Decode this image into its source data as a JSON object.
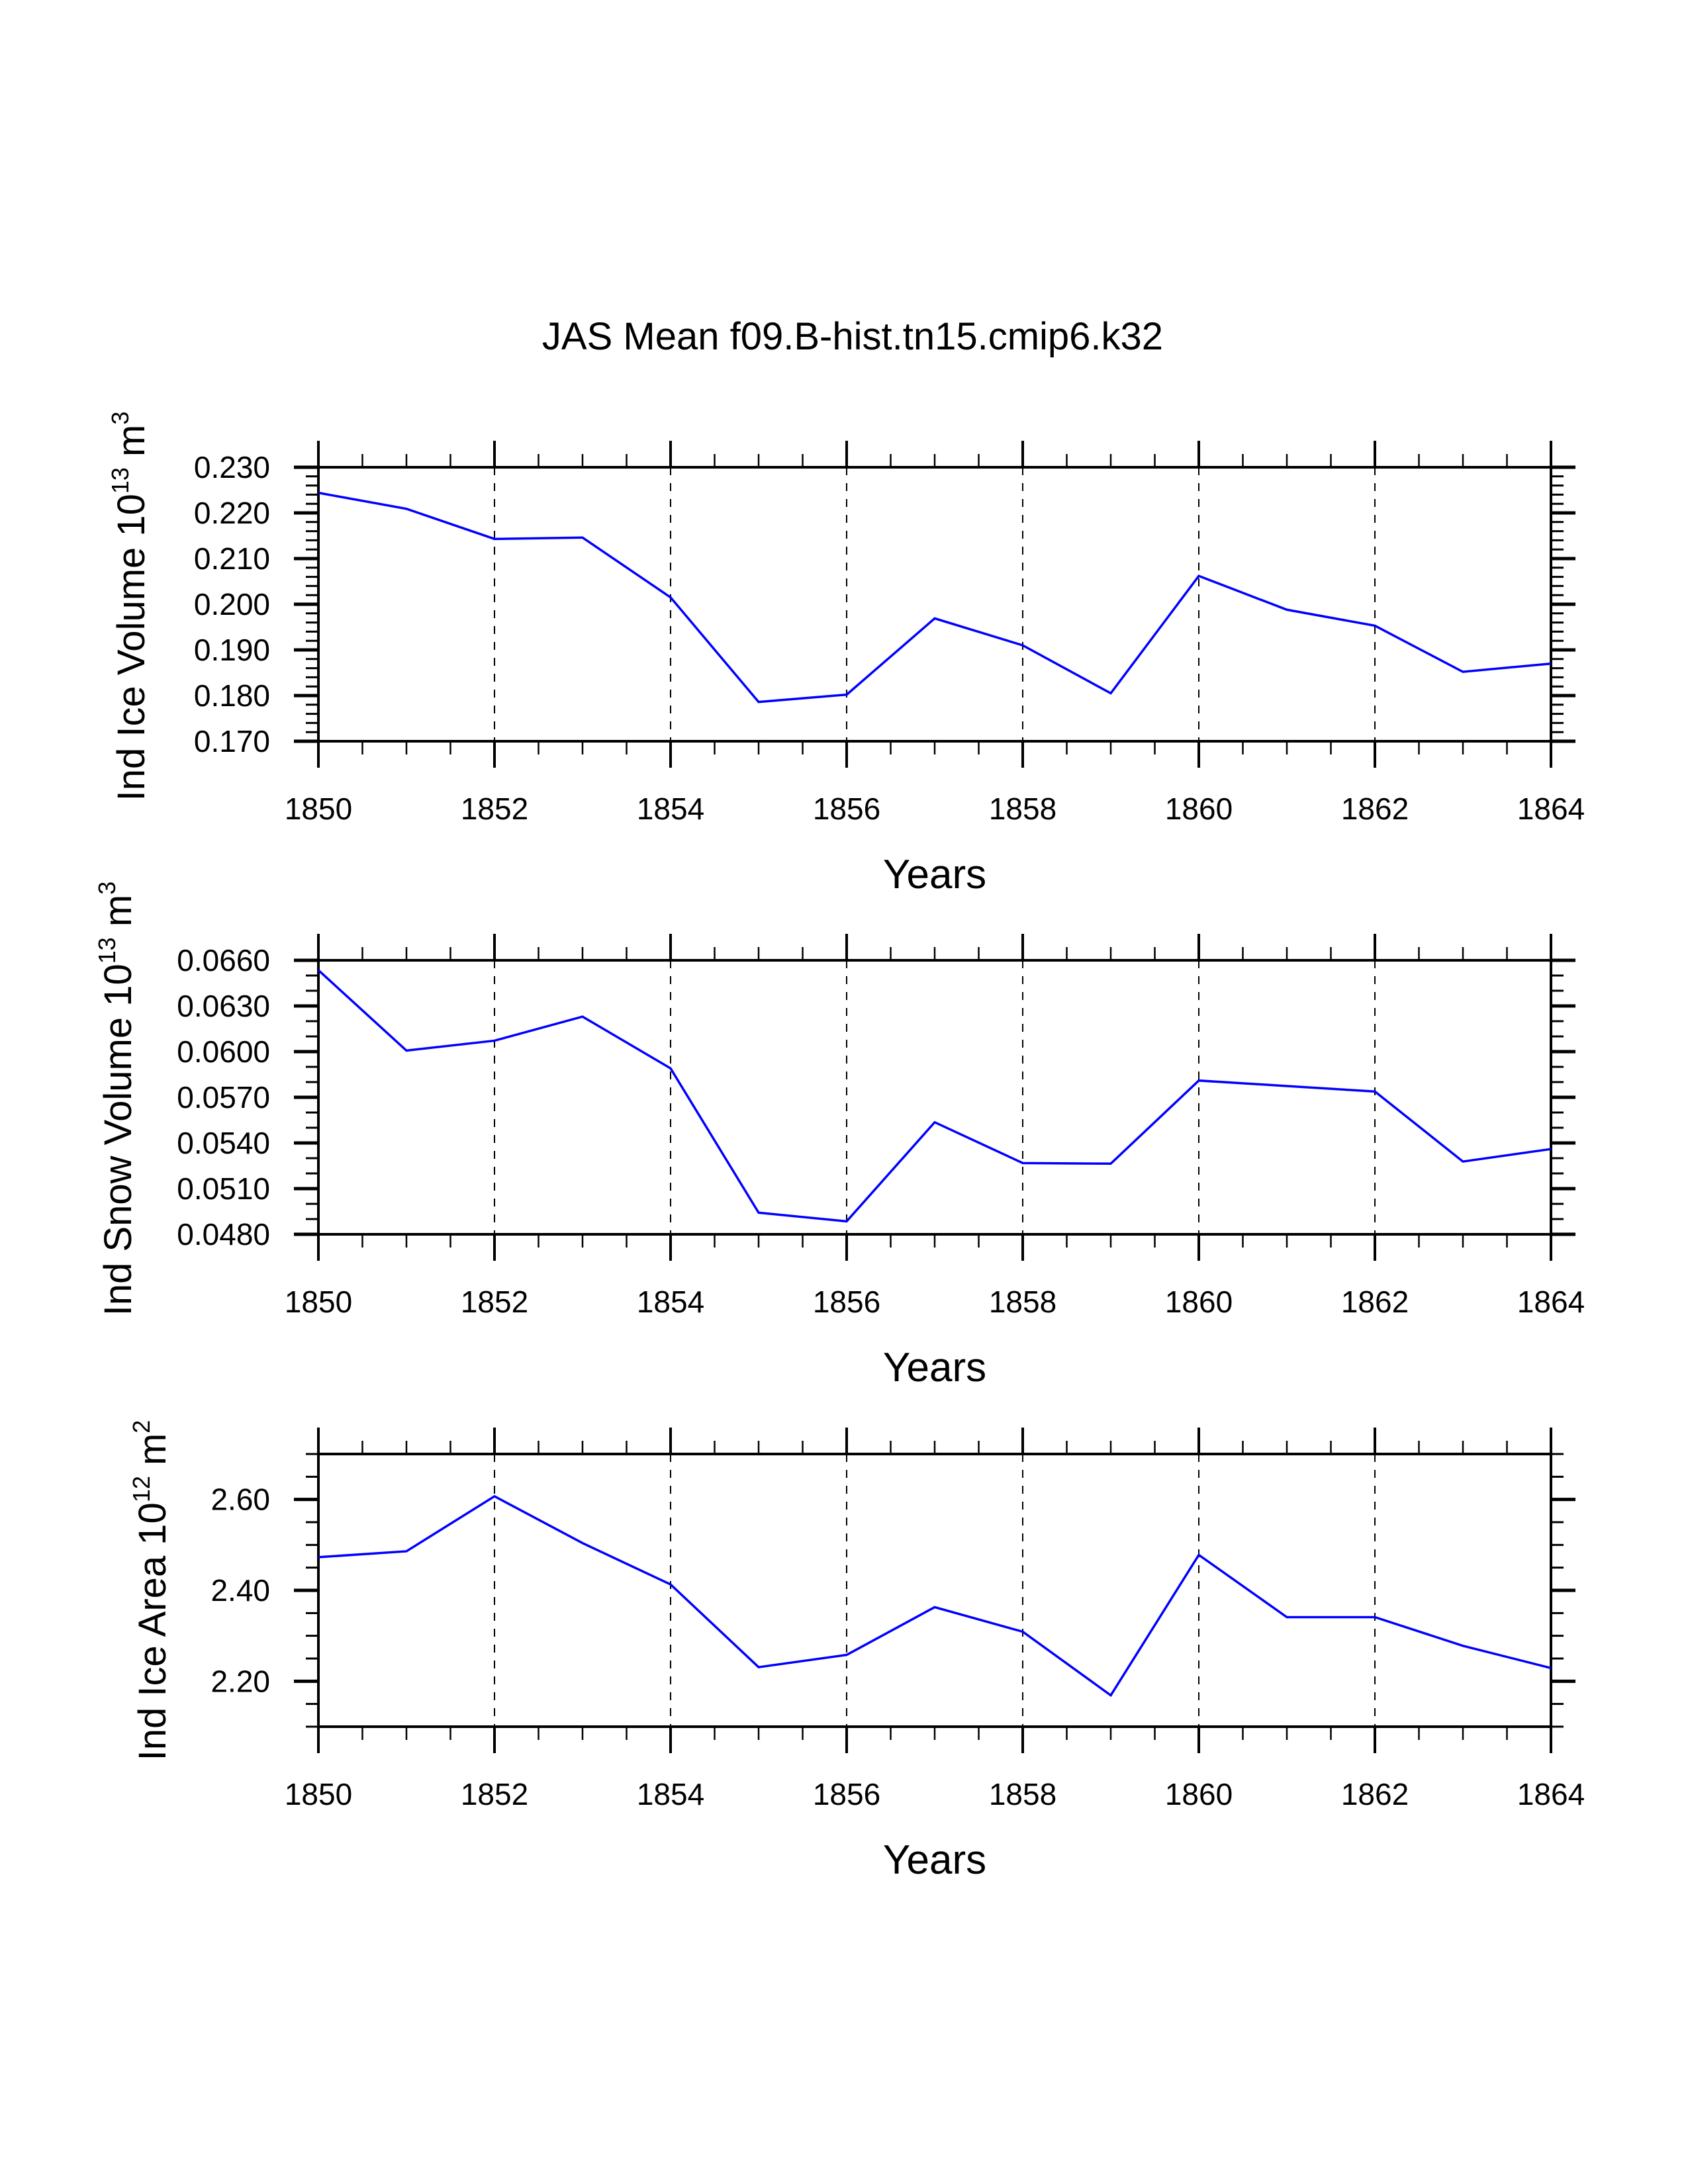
{
  "title": "JAS Mean f09.B-hist.tn15.cmip6.k32",
  "line_color": "#0000ff",
  "chart_data": [
    {
      "type": "line",
      "title": "JAS Mean f09.B-hist.tn15.cmip6.k32",
      "xlabel": "Years",
      "ylabel_parts": [
        "Ind Ice Volume 10",
        "13",
        " m",
        "3"
      ],
      "x": [
        1850,
        1851,
        1852,
        1853,
        1854,
        1855,
        1856,
        1857,
        1858,
        1859,
        1860,
        1861,
        1862,
        1863,
        1864
      ],
      "values": [
        0.2244,
        0.2209,
        0.2143,
        0.2146,
        0.2015,
        0.1786,
        0.1802,
        0.1969,
        0.191,
        0.1805,
        0.2062,
        0.1988,
        0.1953,
        0.1852,
        0.187
      ],
      "xlim": [
        1850,
        1864
      ],
      "ylim": [
        0.17,
        0.23
      ],
      "xticks": [
        "1850",
        "1852",
        "1854",
        "1856",
        "1858",
        "1860",
        "1862",
        "1864"
      ],
      "yticks": [
        "0.170",
        "0.180",
        "0.190",
        "0.200",
        "0.210",
        "0.220",
        "0.230"
      ],
      "ytick_values": [
        0.17,
        0.18,
        0.19,
        0.2,
        0.21,
        0.22,
        0.23
      ],
      "yminor_step": 0.002,
      "grid": "vertical dashed at major x ticks"
    },
    {
      "type": "line",
      "xlabel": "Years",
      "ylabel_parts": [
        "Ind Snow Volume 10",
        "13",
        " m",
        "3"
      ],
      "x": [
        1850,
        1851,
        1852,
        1853,
        1854,
        1855,
        1856,
        1857,
        1858,
        1859,
        1860,
        1861,
        1862,
        1863,
        1864
      ],
      "values": [
        0.06535,
        0.06007,
        0.06072,
        0.0623,
        0.0589,
        0.04942,
        0.04885,
        0.05536,
        0.05268,
        0.05264,
        0.0581,
        0.05774,
        0.05738,
        0.05278,
        0.0536
      ],
      "xlim": [
        1850,
        1864
      ],
      "ylim": [
        0.048,
        0.066
      ],
      "xticks": [
        "1850",
        "1852",
        "1854",
        "1856",
        "1858",
        "1860",
        "1862",
        "1864"
      ],
      "yticks": [
        "0.0480",
        "0.0510",
        "0.0540",
        "0.0570",
        "0.0600",
        "0.0630",
        "0.0660"
      ],
      "ytick_values": [
        0.048,
        0.051,
        0.054,
        0.057,
        0.06,
        0.063,
        0.066
      ],
      "yminor_step": 0.001,
      "grid": "vertical dashed at major x ticks"
    },
    {
      "type": "line",
      "xlabel": "Years",
      "ylabel_parts": [
        "Ind Ice Area 10",
        "12",
        " m",
        "2"
      ],
      "x": [
        1850,
        1851,
        1852,
        1853,
        1854,
        1855,
        1856,
        1857,
        1858,
        1859,
        1860,
        1861,
        1862,
        1863,
        1864
      ],
      "values": [
        2.473,
        2.486,
        2.607,
        2.504,
        2.413,
        2.231,
        2.258,
        2.363,
        2.309,
        2.169,
        2.478,
        2.341,
        2.341,
        2.278,
        2.229
      ],
      "xlim": [
        1850,
        1864
      ],
      "ylim": [
        2.1,
        2.7
      ],
      "xticks": [
        "1850",
        "1852",
        "1854",
        "1856",
        "1858",
        "1860",
        "1862",
        "1864"
      ],
      "yticks": [
        "2.20",
        "2.40",
        "2.60"
      ],
      "ytick_values": [
        2.2,
        2.4,
        2.6
      ],
      "yminor_step": 0.05,
      "grid": "vertical dashed at major x ticks"
    }
  ]
}
